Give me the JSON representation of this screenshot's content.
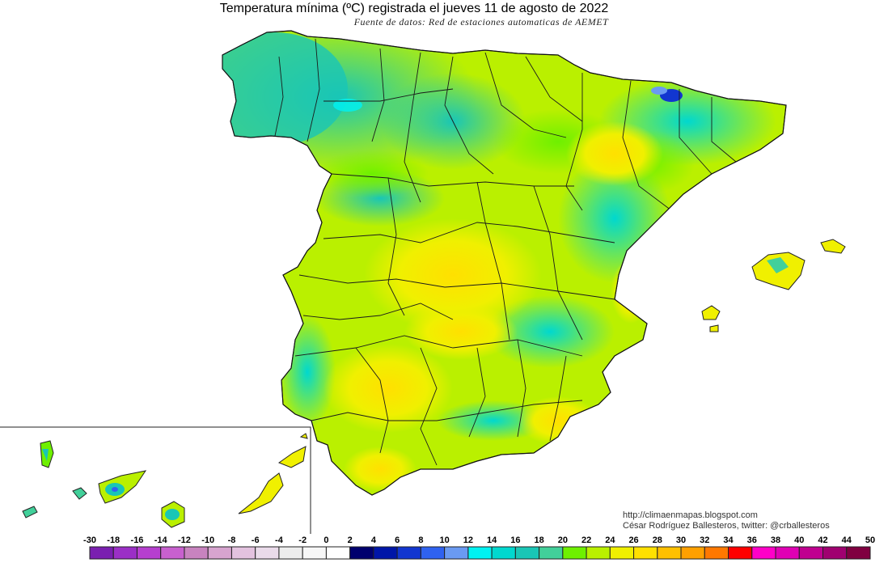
{
  "title": "Temperatura mínima (ºC) registrada el jueves 11 de agosto de 2022",
  "subtitle": "Fuente de datos: Red de estaciones automaticas de AEMET",
  "credits": {
    "blog": "http://climaenmapas.blogspot.com",
    "author": "César Rodríguez Ballesteros, twitter: @crballesteros"
  },
  "legend": {
    "labels": [
      "-30",
      "-18",
      "-16",
      "-14",
      "-12",
      "-10",
      "-8",
      "-6",
      "-4",
      "-2",
      "0",
      "2",
      "4",
      "6",
      "8",
      "10",
      "12",
      "14",
      "16",
      "18",
      "20",
      "22",
      "24",
      "26",
      "28",
      "30",
      "32",
      "34",
      "36",
      "38",
      "40",
      "42",
      "44",
      "50"
    ],
    "colors": [
      "#7a1fb0",
      "#9b2fc6",
      "#b63fcf",
      "#c860cf",
      "#c883bf",
      "#d7a4cf",
      "#e3c2df",
      "#eadbea",
      "#ededed",
      "#f7f7f7",
      "#ffffff",
      "#00006e",
      "#0016a8",
      "#1236d0",
      "#2f62f0",
      "#6a9af2",
      "#00f2f2",
      "#00d8cf",
      "#19c6b6",
      "#42d09a",
      "#6ef000",
      "#baf000",
      "#f0f000",
      "#ffe000",
      "#ffc000",
      "#ffa000",
      "#ff7800",
      "#ff0000",
      "#ff00c8",
      "#e000b4",
      "#c00090",
      "#a00070",
      "#800040"
    ]
  },
  "map": {
    "region": "España",
    "inset": "Islas Canarias"
  }
}
